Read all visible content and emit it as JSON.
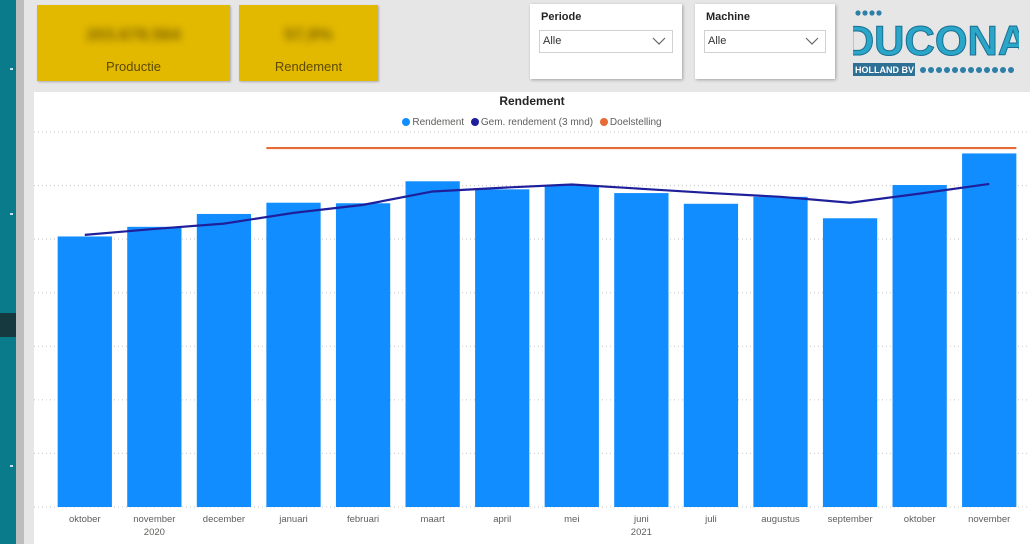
{
  "kpis": [
    {
      "value": "203.678.564",
      "label": "Productie"
    },
    {
      "value": "57,9%",
      "label": "Rendement"
    }
  ],
  "slicers": [
    {
      "title": "Periode",
      "value": "Alle"
    },
    {
      "title": "Machine",
      "value": "Alle"
    }
  ],
  "logo": {
    "text": "DUCONA",
    "subtext": "HOLLAND BV"
  },
  "colors": {
    "bar": "#118dff",
    "avg_line": "#1f1f9c",
    "target_line": "#e66c37",
    "kpi_bg": "#e3b900",
    "rail": "#0a7b8a"
  },
  "chart_data": {
    "type": "bar",
    "title": "Rendement",
    "legend": [
      "Rendement",
      "Gem. rendement (3 mnd)",
      "Doelstelling"
    ],
    "legend_position": "top-center",
    "categories": [
      "oktober",
      "november",
      "december",
      "januari",
      "februari",
      "maart",
      "april",
      "mei",
      "juni",
      "juli",
      "augustus",
      "september",
      "oktober",
      "november"
    ],
    "year_labels": [
      {
        "label": "2020",
        "category_index": 1
      },
      {
        "label": "2021",
        "category_index": 8
      }
    ],
    "series": [
      {
        "name": "Rendement",
        "kind": "bar",
        "values": [
          50.5,
          52.3,
          54.7,
          56.8,
          56.7,
          60.8,
          59.3,
          60.1,
          58.6,
          56.6,
          57.9,
          53.9,
          60.1,
          66.0
        ]
      },
      {
        "name": "Gem. rendement (3 mnd)",
        "kind": "line",
        "values": [
          50.8,
          51.9,
          52.9,
          54.9,
          56.4,
          58.9,
          59.6,
          60.2,
          59.4,
          58.6,
          57.9,
          56.8,
          58.5,
          60.3
        ]
      },
      {
        "name": "Doelstelling",
        "kind": "line",
        "values": [
          null,
          null,
          null,
          67.0,
          67.0,
          67.0,
          67.0,
          67.0,
          67.0,
          67.0,
          67.0,
          67.0,
          67.0,
          67.0
        ]
      }
    ],
    "ylim": [
      0,
      70
    ],
    "grid": true
  }
}
